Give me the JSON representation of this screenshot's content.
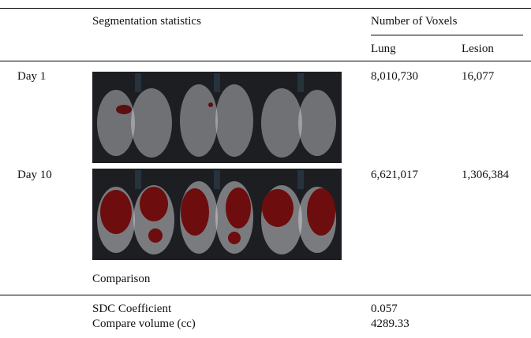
{
  "table": {
    "header": {
      "col1": "Segmentation statistics",
      "group": "Number of Voxels",
      "sub": [
        "Lung",
        "Lesion"
      ]
    },
    "rows": [
      {
        "label": "Day 1",
        "lung": "8,010,730",
        "lesion": "16,077"
      },
      {
        "label": "Day 10",
        "lung": "6,621,017",
        "lesion": "1,306,384"
      }
    ],
    "comparison": {
      "title": "Comparison",
      "rows": [
        {
          "label": "SDC Coefficient",
          "value": "0.057"
        },
        {
          "label": "Compare volume (cc)",
          "value": "4289.33"
        }
      ]
    }
  }
}
